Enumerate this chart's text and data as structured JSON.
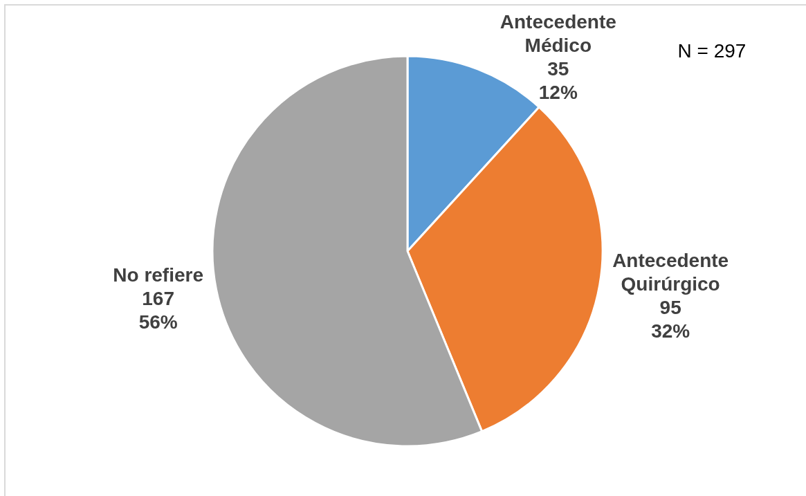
{
  "chart_data": {
    "type": "pie",
    "categories": [
      "Antecedente Médico",
      "Antecedente Quirúrgico",
      "No refiere"
    ],
    "values": [
      35,
      95,
      167
    ],
    "colors": [
      "#5b9bd5",
      "#ed7d31",
      "#a5a5a5"
    ],
    "value_labels": [
      "35\n12%",
      "95\n32%",
      "167\n56%"
    ],
    "annotations": [
      "N = 297"
    ]
  }
}
